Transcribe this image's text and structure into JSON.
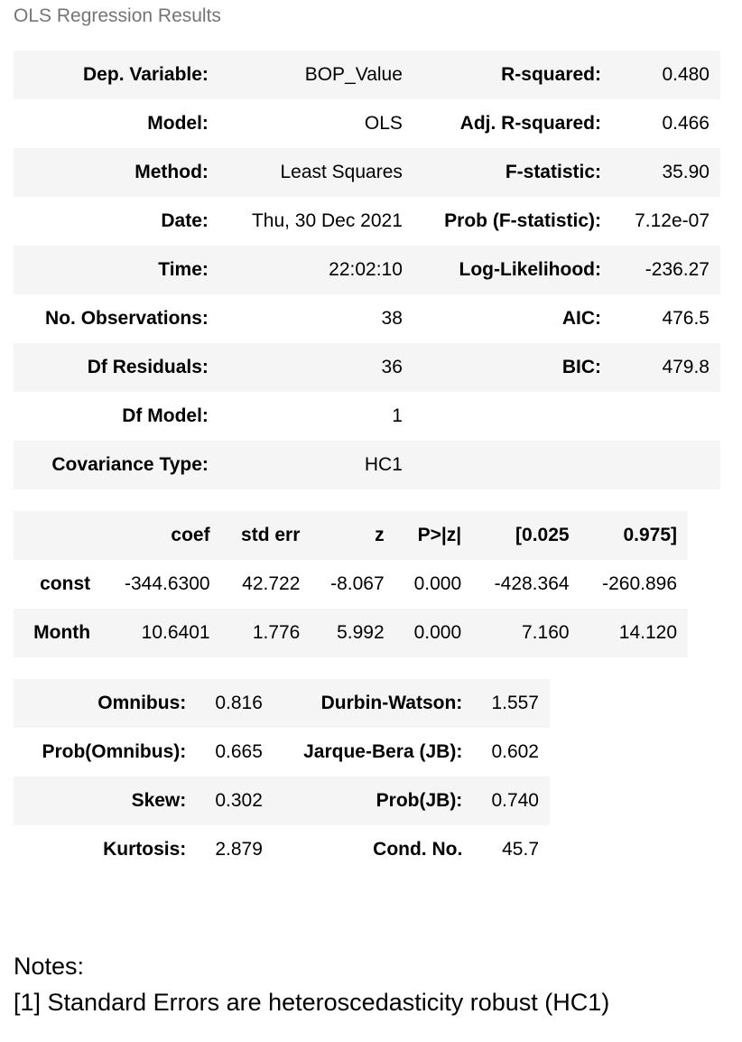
{
  "caption": "OLS Regression Results",
  "summary_rows": [
    {
      "l1": "Dep. Variable:",
      "v1": "BOP_Value",
      "l2": "R-squared:",
      "v2": "0.480"
    },
    {
      "l1": "Model:",
      "v1": "OLS",
      "l2": "Adj. R-squared:",
      "v2": "0.466"
    },
    {
      "l1": "Method:",
      "v1": "Least Squares",
      "l2": "F-statistic:",
      "v2": "35.90"
    },
    {
      "l1": "Date:",
      "v1": "Thu, 30 Dec 2021",
      "l2": "Prob (F-statistic):",
      "v2": "7.12e-07"
    },
    {
      "l1": "Time:",
      "v1": "22:02:10",
      "l2": "Log-Likelihood:",
      "v2": "-236.27"
    },
    {
      "l1": "No. Observations:",
      "v1": "38",
      "l2": "AIC:",
      "v2": "476.5"
    },
    {
      "l1": "Df Residuals:",
      "v1": "36",
      "l2": "BIC:",
      "v2": "479.8"
    },
    {
      "l1": "Df Model:",
      "v1": "1",
      "l2": "",
      "v2": ""
    },
    {
      "l1": "Covariance Type:",
      "v1": "HC1",
      "l2": "",
      "v2": ""
    }
  ],
  "coef_table": {
    "headers": [
      "",
      "coef",
      "std err",
      "z",
      "P>|z|",
      "[0.025",
      "0.975]"
    ],
    "rows": [
      {
        "name": "const",
        "cells": [
          "-344.6300",
          "42.722",
          "-8.067",
          "0.000",
          "-428.364",
          "-260.896"
        ]
      },
      {
        "name": "Month",
        "cells": [
          "10.6401",
          "1.776",
          "5.992",
          "0.000",
          "7.160",
          "14.120"
        ]
      }
    ]
  },
  "diag_rows": [
    {
      "l1": "Omnibus:",
      "v1": "0.816",
      "l2": "Durbin-Watson:",
      "v2": "1.557"
    },
    {
      "l1": "Prob(Omnibus):",
      "v1": "0.665",
      "l2": "Jarque-Bera (JB):",
      "v2": "0.602"
    },
    {
      "l1": "Skew:",
      "v1": "0.302",
      "l2": "Prob(JB):",
      "v2": "0.740"
    },
    {
      "l1": "Kurtosis:",
      "v1": "2.879",
      "l2": "Cond. No.",
      "v2": "45.7"
    }
  ],
  "notes": {
    "title": "Notes:",
    "line1": "[1] Standard Errors are heteroscedasticity robust (HC1)"
  },
  "colors": {
    "row_shade": "#f5f5f5",
    "caption_text": "#757575"
  }
}
